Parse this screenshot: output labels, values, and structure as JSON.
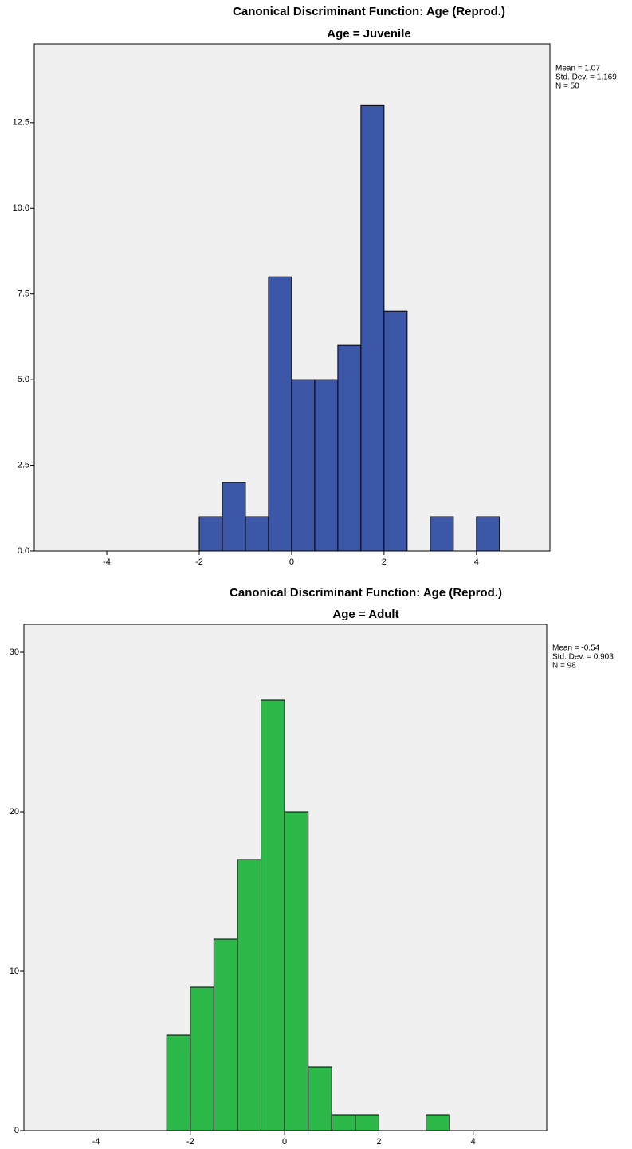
{
  "chart_data": [
    {
      "type": "histogram",
      "title": "Canonical Discriminant Function: Age (Reprod.)",
      "subtitle": "Age = Juvenile",
      "annotations": [
        "Mean = 1.07",
        "Std. Dev. = 1.169",
        "N = 50"
      ],
      "bins": [
        -2,
        -1.5,
        -1,
        -0.5,
        0,
        0.5,
        1,
        1.5,
        2,
        2.5,
        3,
        3.5,
        4,
        4.5
      ],
      "values": [
        1,
        2,
        1,
        8,
        5,
        5,
        6,
        13,
        7,
        0,
        1,
        0,
        1
      ],
      "color": "#3c56a8",
      "xlim": [
        -5.57,
        5.59
      ],
      "xticks": [
        -4,
        -2,
        0,
        2,
        4
      ],
      "ylim": [
        0,
        14.8
      ],
      "yticks": [
        {
          "value": 0,
          "label": "0.0"
        },
        2.5,
        {
          "value": 5,
          "label": "5.0"
        },
        7.5,
        {
          "value": 10,
          "label": "10.0"
        },
        12.5
      ],
      "grid": false
    },
    {
      "type": "histogram",
      "title": "Canonical Discriminant Function: Age (Reprod.)",
      "subtitle": "Age = Adult",
      "annotations": [
        "Mean = -0.54",
        "Std. Dev. = 0.903",
        "N = 98"
      ],
      "bins": [
        -2.5,
        -2,
        -1.5,
        -1,
        -0.5,
        0,
        0.5,
        1,
        1.5,
        2,
        2.5,
        3,
        3.5
      ],
      "values": [
        6,
        9,
        12,
        17,
        27,
        20,
        4,
        1,
        1,
        0,
        0,
        1
      ],
      "color": "#2db84a",
      "xlim": [
        -5.53,
        5.56
      ],
      "xticks": [
        -4,
        -2,
        0,
        2,
        4
      ],
      "ylim": [
        0,
        31.75
      ],
      "yticks": [
        0,
        10,
        20,
        30
      ],
      "grid": false
    }
  ]
}
